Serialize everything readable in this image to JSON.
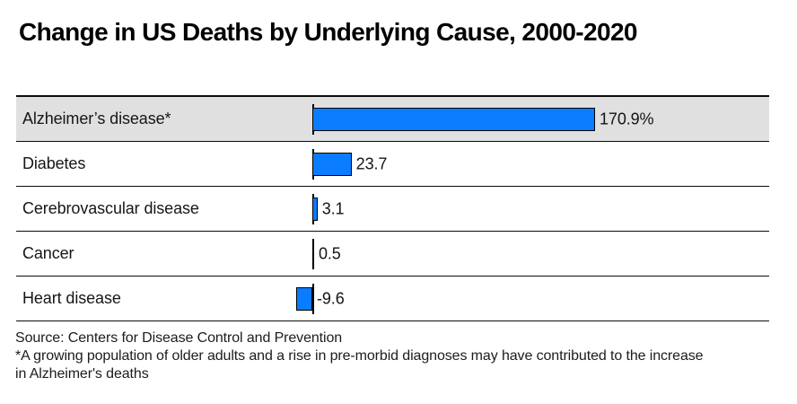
{
  "title": "Change in US Deaths by Underlying Cause, 2000-2020",
  "chart_data": {
    "type": "bar",
    "orientation": "horizontal",
    "title": "Change in US Deaths by Underlying Cause, 2000-2020",
    "categories": [
      "Alzheimer’s disease*",
      "Diabetes",
      "Cerebrovascular disease",
      "Cancer",
      "Heart disease"
    ],
    "values": [
      170.9,
      23.7,
      3.1,
      0.5,
      -9.6
    ],
    "value_labels": [
      "170.9%",
      "23.7",
      "3.1",
      "0.5",
      "-9.6"
    ],
    "unit": "percent",
    "highlighted_category_index": 0,
    "bar_color": "#0a7cff",
    "bar_outline_color": "#000000",
    "highlight_row_color": "#e0e0e0",
    "xlabel": "",
    "ylabel": "",
    "legend": false,
    "grid": false
  },
  "source": "Source: Centers for Disease Control and Prevention",
  "footnote": "*A growing population of older adults and a rise in pre-morbid diagnoses may have contributed to the increase in Alzheimer's deaths"
}
